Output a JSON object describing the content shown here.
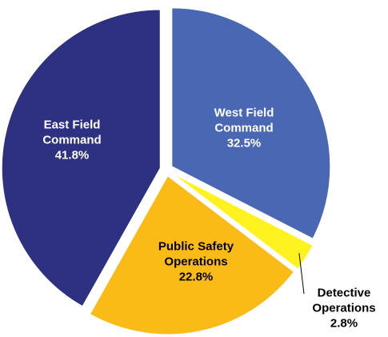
{
  "chart_data": {
    "type": "pie",
    "categories": [
      "West Field Command",
      "Detective Operations",
      "Public Safety Operations",
      "East Field Command"
    ],
    "values": [
      32.5,
      2.8,
      22.8,
      41.8
    ],
    "value_labels": [
      "32.5%",
      "2.8%",
      "22.8%",
      "41.8%"
    ],
    "colors": [
      "#4a67b4",
      "#fff21f",
      "#fbbb16",
      "#2e3182"
    ]
  }
}
